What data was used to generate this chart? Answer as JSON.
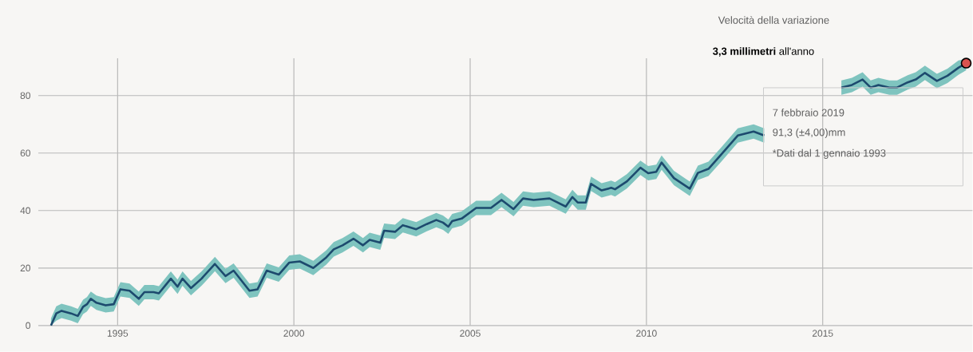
{
  "chart_data": {
    "type": "line",
    "x": [
      1993.11,
      1993.26,
      1993.41,
      1993.68,
      1993.87,
      1994.02,
      1994.13,
      1994.24,
      1994.4,
      1994.66,
      1994.89,
      1995.08,
      1995.34,
      1995.6,
      1995.76,
      1996.02,
      1996.17,
      1996.51,
      1996.7,
      1996.84,
      1997.08,
      1997.38,
      1997.76,
      1998.06,
      1998.29,
      1998.74,
      1998.97,
      1999.23,
      1999.57,
      1999.87,
      2000.17,
      2000.55,
      2000.92,
      2001.13,
      2001.38,
      2001.69,
      2001.96,
      2002.15,
      2002.45,
      2002.56,
      2002.87,
      2003.09,
      2003.47,
      2003.77,
      2004.04,
      2004.23,
      2004.38,
      2004.49,
      2004.76,
      2005.17,
      2005.59,
      2005.89,
      2006.23,
      2006.5,
      2006.8,
      2007.25,
      2007.71,
      2007.9,
      2008.05,
      2008.28,
      2008.43,
      2008.73,
      2009.0,
      2009.11,
      2009.45,
      2009.83,
      2010.05,
      2010.28,
      2010.43,
      2010.78,
      2011.23,
      2011.46,
      2011.76,
      2012.13,
      2012.59,
      2013.04,
      2013.34,
      2014.4,
      2015.53,
      2015.83,
      2016.13,
      2016.36,
      2016.58,
      2016.89,
      2017.11,
      2017.41,
      2017.64,
      2017.9,
      2018.24,
      2018.54,
      2018.85,
      2019.07
    ],
    "series": [
      {
        "color": "#1d4a6e",
        "values": [
          0,
          4.2,
          5.1,
          4.2,
          3.3,
          6.5,
          7.4,
          9.3,
          7.9,
          7.0,
          7.4,
          12.6,
          12.1,
          9.3,
          11.6,
          11.6,
          11.2,
          16.3,
          13.5,
          16.3,
          13.0,
          16.3,
          21.4,
          17.2,
          19.1,
          12.1,
          12.6,
          19.1,
          17.7,
          21.9,
          22.3,
          20.0,
          23.7,
          26.5,
          27.9,
          30.2,
          27.9,
          29.8,
          28.8,
          33.0,
          32.6,
          34.9,
          33.5,
          35.3,
          36.7,
          35.8,
          34.4,
          36.3,
          37.2,
          40.9,
          40.9,
          43.7,
          40.5,
          44.2,
          43.7,
          44.2,
          41.4,
          44.7,
          42.8,
          42.8,
          49.3,
          47.0,
          47.9,
          47.4,
          50.2,
          54.9,
          53.0,
          53.5,
          56.7,
          51.3,
          47.6,
          53.1,
          54.5,
          59.6,
          66.1,
          67.5,
          66.1,
          null,
          82.8,
          83.7,
          85.6,
          82.8,
          83.7,
          82.8,
          82.8,
          84.6,
          85.6,
          87.9,
          85.1,
          86.9,
          89.7,
          91.3
        ],
        "lower": [
          0,
          1.7,
          2.6,
          1.7,
          0.8,
          4.0,
          4.9,
          6.8,
          5.4,
          4.5,
          4.9,
          10.1,
          9.6,
          6.8,
          9.1,
          9.1,
          8.7,
          13.8,
          11.0,
          13.8,
          10.5,
          13.8,
          18.9,
          14.7,
          16.6,
          9.6,
          10.1,
          16.6,
          15.2,
          19.4,
          19.8,
          17.5,
          21.2,
          24.0,
          25.4,
          27.7,
          25.4,
          27.3,
          26.3,
          30.5,
          30.1,
          32.4,
          31.0,
          32.8,
          34.2,
          33.3,
          31.9,
          33.8,
          34.7,
          38.4,
          38.4,
          41.2,
          38.0,
          41.7,
          41.2,
          41.7,
          38.9,
          42.2,
          40.3,
          40.3,
          46.8,
          44.5,
          45.4,
          44.9,
          47.7,
          52.4,
          50.5,
          51.0,
          54.2,
          48.8,
          45.1,
          50.6,
          52.0,
          57.1,
          63.6,
          65.0,
          63.6,
          null,
          80.3,
          81.2,
          83.1,
          80.3,
          81.2,
          80.3,
          80.3,
          82.1,
          83.1,
          85.4,
          82.6,
          84.4,
          87.2,
          88.8
        ],
        "upper": [
          2.5,
          6.7,
          7.6,
          6.7,
          5.8,
          9.0,
          9.9,
          11.8,
          10.4,
          9.5,
          9.9,
          15.1,
          14.6,
          11.8,
          14.1,
          14.1,
          13.7,
          18.8,
          16.0,
          18.8,
          15.5,
          18.8,
          23.9,
          19.7,
          21.6,
          14.6,
          15.1,
          21.6,
          20.2,
          24.4,
          24.8,
          22.5,
          26.2,
          29.0,
          30.4,
          32.7,
          30.4,
          32.3,
          31.3,
          35.5,
          35.1,
          37.4,
          36.0,
          37.8,
          39.2,
          38.3,
          36.9,
          38.8,
          39.7,
          43.4,
          43.4,
          46.2,
          43.0,
          46.7,
          46.2,
          46.7,
          43.9,
          47.2,
          45.3,
          45.3,
          51.8,
          49.5,
          50.4,
          49.9,
          52.7,
          57.4,
          55.5,
          56.0,
          59.2,
          53.8,
          50.1,
          55.6,
          57.0,
          62.1,
          68.6,
          70.0,
          68.6,
          null,
          85.3,
          86.2,
          88.1,
          85.3,
          86.2,
          85.3,
          85.3,
          87.1,
          88.1,
          90.4,
          87.6,
          89.4,
          92.2,
          92.8
        ]
      },
      {
        "type": "scatter",
        "color": "#d9534f",
        "marker": "circle",
        "x": [
          2019.07
        ],
        "values": [
          91.3
        ]
      }
    ],
    "xlim": [
      1992.75,
      2019.25
    ],
    "ylim": [
      0,
      93
    ],
    "xticks": [
      1995,
      2000,
      2005,
      2010,
      2015
    ],
    "yticks": [
      0,
      20,
      40,
      60,
      80
    ],
    "grid": true,
    "annotations": [
      "Velocità della variazione",
      "**3,3 millimetri** all'anno",
      "7 febbraio 2019",
      "91,3 (±4,00)mm",
      "*Dati dal 1 gennaio 1993"
    ]
  }
}
